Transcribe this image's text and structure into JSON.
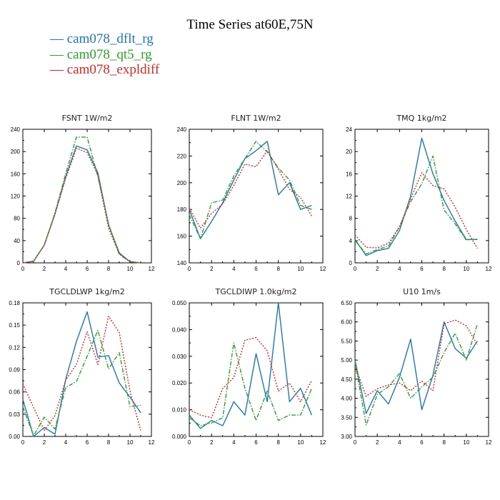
{
  "figure": {
    "title": "Time Series at60E,75N",
    "legend": [
      {
        "label": "cam078_dflt_rg",
        "color": "#1f77b4",
        "style": "solid"
      },
      {
        "label": "cam078_qt5_rg",
        "color": "#2ca02c",
        "style": "dashdot"
      },
      {
        "label": "cam078_expldiff",
        "color": "#d62728",
        "style": "dotted"
      }
    ]
  },
  "chart_data": [
    {
      "type": "line",
      "title": "FSNT   1W/m2",
      "xlim": [
        0,
        12
      ],
      "ylim": [
        0,
        240
      ],
      "xticks": [
        0,
        2,
        4,
        6,
        8,
        10,
        12
      ],
      "yticks": [
        0,
        40,
        80,
        120,
        160,
        200,
        240
      ],
      "ytick_labels": [
        "0",
        "40",
        "80",
        "120",
        "160",
        "200",
        "240"
      ],
      "x": [
        0,
        1,
        2,
        3,
        4,
        5,
        6,
        7,
        8,
        9,
        10,
        11
      ],
      "series": [
        {
          "name": "cam078_dflt_rg",
          "values": [
            0,
            3,
            32,
            88,
            155,
            210,
            203,
            162,
            68,
            18,
            2,
            0
          ]
        },
        {
          "name": "cam078_qt5_rg",
          "values": [
            0,
            3,
            32,
            90,
            160,
            226,
            226,
            155,
            70,
            15,
            2,
            0
          ]
        },
        {
          "name": "cam078_expldiff",
          "values": [
            0,
            3,
            32,
            88,
            152,
            206,
            198,
            158,
            62,
            16,
            2,
            0
          ]
        }
      ]
    },
    {
      "type": "line",
      "title": "FLNT   1W/m2",
      "xlim": [
        0,
        12
      ],
      "ylim": [
        140,
        240
      ],
      "xticks": [
        0,
        2,
        4,
        6,
        8,
        10,
        12
      ],
      "yticks": [
        140,
        160,
        180,
        200,
        220,
        240
      ],
      "ytick_labels": [
        "140",
        "160",
        "180",
        "200",
        "220",
        "240"
      ],
      "x": [
        0,
        1,
        2,
        3,
        4,
        5,
        6,
        7,
        8,
        9,
        10,
        11
      ],
      "series": [
        {
          "name": "cam078_dflt_rg",
          "values": [
            180,
            158,
            171,
            185,
            202,
            218,
            224,
            231,
            191,
            200,
            180,
            183
          ]
        },
        {
          "name": "cam078_qt5_rg",
          "values": [
            176,
            158,
            185,
            187,
            205,
            218,
            231,
            223,
            211,
            202,
            183,
            180
          ]
        },
        {
          "name": "cam078_expldiff",
          "values": [
            181,
            166,
            177,
            184,
            198,
            214,
            212,
            224,
            210,
            195,
            189,
            175
          ]
        }
      ]
    },
    {
      "type": "line",
      "title": "TMQ   1kg/m2",
      "xlim": [
        0,
        12
      ],
      "ylim": [
        0,
        24
      ],
      "xticks": [
        0,
        2,
        4,
        6,
        8,
        10,
        12
      ],
      "yticks": [
        0,
        4,
        8,
        12,
        16,
        20,
        24
      ],
      "ytick_labels": [
        "0",
        "4",
        "8",
        "12",
        "16",
        "20",
        "24"
      ],
      "x": [
        0,
        1,
        2,
        3,
        4,
        5,
        6,
        7,
        8,
        9,
        10,
        11
      ],
      "series": [
        {
          "name": "cam078_dflt_rg",
          "values": [
            4.2,
            1.3,
            2.2,
            2.6,
            5.8,
            12,
            22.4,
            16,
            11.2,
            7.5,
            4.2,
            4.2
          ]
        },
        {
          "name": "cam078_qt5_rg",
          "values": [
            4,
            1.6,
            2.4,
            3,
            6.5,
            11,
            14.2,
            19.2,
            9.5,
            7,
            4.1,
            4.3
          ]
        },
        {
          "name": "cam078_expldiff",
          "values": [
            5,
            2.8,
            2.7,
            3.5,
            6.5,
            11.5,
            16.2,
            13.9,
            13.3,
            10,
            6,
            2.6
          ]
        }
      ]
    },
    {
      "type": "line",
      "title": "TGCLDLWP   1kg/m2",
      "xlim": [
        0,
        12
      ],
      "ylim": [
        0,
        0.18
      ],
      "xticks": [
        0,
        2,
        4,
        6,
        8,
        10,
        12
      ],
      "yticks": [
        0,
        0.03,
        0.06,
        0.09,
        0.12,
        0.15,
        0.18
      ],
      "ytick_labels": [
        "0.00",
        "0.03",
        "0.06",
        "0.09",
        "0.12",
        "0.15",
        "0.18"
      ],
      "x": [
        0,
        1,
        2,
        3,
        4,
        5,
        6,
        7,
        8,
        9,
        10,
        11
      ],
      "series": [
        {
          "name": "cam078_dflt_rg",
          "values": [
            0.05,
            0,
            0.012,
            0.003,
            0.077,
            0.128,
            0.168,
            0.107,
            0.109,
            0.072,
            0.053,
            0.032
          ]
        },
        {
          "name": "cam078_qt5_rg",
          "values": [
            0.04,
            0.001,
            0.026,
            0.01,
            0.066,
            0.074,
            0.108,
            0.143,
            0.091,
            0.113,
            0.04,
            0.042
          ]
        },
        {
          "name": "cam078_expldiff",
          "values": [
            0.071,
            0.039,
            0.008,
            0.028,
            0.076,
            0.097,
            0.141,
            0.097,
            0.162,
            0.14,
            0.061,
            0.008
          ]
        }
      ]
    },
    {
      "type": "line",
      "title": "TGCLDIWP   1.0kg/m2",
      "xlim": [
        0,
        12
      ],
      "ylim": [
        0,
        0.05
      ],
      "xticks": [
        0,
        2,
        4,
        6,
        8,
        10,
        12
      ],
      "yticks": [
        0,
        0.01,
        0.02,
        0.03,
        0.04,
        0.05
      ],
      "ytick_labels": [
        "0.000",
        "0.010",
        "0.020",
        "0.030",
        "0.040",
        "0.050"
      ],
      "x": [
        0,
        1,
        2,
        3,
        4,
        5,
        6,
        7,
        8,
        9,
        10,
        11
      ],
      "series": [
        {
          "name": "cam078_dflt_rg",
          "values": [
            0.008,
            0.003,
            0.006,
            0.004,
            0.013,
            0.008,
            0.031,
            0.013,
            0.05,
            0.013,
            0.018,
            0.008
          ]
        },
        {
          "name": "cam078_qt5_rg",
          "values": [
            0.007,
            0.004,
            0.005,
            0.007,
            0.035,
            0.018,
            0.006,
            0.017,
            0.006,
            0.008,
            0.008,
            0.018
          ]
        },
        {
          "name": "cam078_expldiff",
          "values": [
            0.01,
            0.008,
            0.007,
            0.018,
            0.022,
            0.036,
            0.037,
            0.032,
            0.017,
            0.02,
            0.013,
            0.021
          ]
        }
      ]
    },
    {
      "type": "line",
      "title": "U10   1m/s",
      "xlim": [
        0,
        12
      ],
      "ylim": [
        3.0,
        6.5
      ],
      "xticks": [
        0,
        2,
        4,
        6,
        8,
        10,
        12
      ],
      "yticks": [
        3.0,
        3.5,
        4.0,
        4.5,
        5.0,
        5.5,
        6.0,
        6.5
      ],
      "ytick_labels": [
        "3.00",
        "3.50",
        "4.00",
        "4.50",
        "5.00",
        "5.50",
        "6.00",
        "6.50"
      ],
      "x": [
        0,
        1,
        2,
        3,
        4,
        5,
        6,
        7,
        8,
        9,
        10,
        11
      ],
      "series": [
        {
          "name": "cam078_dflt_rg",
          "values": [
            5.0,
            3.6,
            4.2,
            3.85,
            4.55,
            5.55,
            3.7,
            4.6,
            6.0,
            5.3,
            5.05,
            5.5
          ]
        },
        {
          "name": "cam078_qt5_rg",
          "values": [
            4.95,
            3.3,
            4.1,
            4.3,
            4.65,
            4.0,
            4.3,
            4.55,
            5.2,
            5.7,
            5.0,
            5.95
          ]
        },
        {
          "name": "cam078_expldiff",
          "values": [
            4.85,
            4.05,
            4.25,
            4.35,
            4.4,
            4.2,
            4.45,
            4.2,
            5.95,
            6.05,
            5.9,
            5.4
          ]
        }
      ]
    }
  ]
}
